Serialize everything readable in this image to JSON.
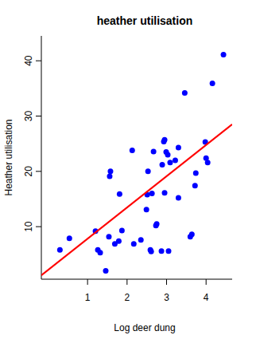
{
  "chart_data": {
    "type": "scatter",
    "title": "heather utilisation",
    "x_label": "Log deer dung",
    "y_label": "Heather utilisation",
    "xlim": [
      -0.17,
      4.66
    ],
    "ylim": [
      0.5,
      44.5
    ],
    "xticks": [
      1,
      2,
      3,
      4
    ],
    "yticks": [
      10,
      20,
      30,
      40
    ],
    "grid": false,
    "series": [
      {
        "type": "scatter",
        "color": "#0000ff",
        "marker": "circle",
        "x": [
          0.3,
          0.54,
          1.2,
          1.26,
          1.32,
          1.46,
          1.54,
          1.58,
          1.56,
          1.69,
          1.79,
          1.81,
          1.87,
          2.13,
          2.17,
          2.35,
          2.49,
          2.53,
          2.51,
          2.59,
          2.61,
          2.63,
          2.67,
          2.73,
          2.75,
          2.87,
          2.89,
          2.93,
          2.95,
          2.95,
          2.99,
          3.03,
          3.05,
          3.09,
          3.22,
          3.3,
          3.3,
          3.46,
          3.6,
          3.64,
          3.72,
          3.74,
          3.98,
          4.0,
          4.04,
          4.16,
          4.44
        ],
        "values": [
          5.8,
          7.9,
          9.2,
          5.8,
          5.3,
          2.0,
          8.2,
          20.0,
          19.1,
          6.9,
          7.4,
          15.9,
          9.3,
          23.8,
          6.9,
          7.6,
          13.1,
          20.0,
          15.8,
          5.8,
          5.5,
          16.0,
          23.6,
          10.2,
          10.5,
          5.6,
          21.2,
          25.4,
          25.7,
          16.1,
          23.5,
          23.0,
          5.6,
          21.6,
          22.0,
          24.3,
          15.2,
          34.2,
          8.2,
          8.6,
          17.4,
          19.7,
          25.3,
          22.4,
          21.6,
          35.9,
          41.1
        ]
      },
      {
        "type": "line",
        "color": "#ff0000",
        "line_style": "solid",
        "x": [
          -0.17,
          4.66
        ],
        "values": [
          1.2,
          28.5
        ]
      }
    ]
  }
}
